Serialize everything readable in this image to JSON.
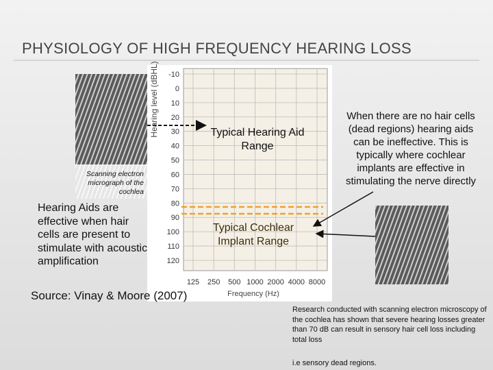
{
  "title": "PHYSIOLOGY OF HIGH FREQUENCY HEARING LOSS",
  "left_image": {
    "caption": "Scanning electron micrograph of the cochlea"
  },
  "left_text": "Hearing Aids are effective when hair cells are present to stimulate with acoustic amplification",
  "source": "Source: Vinay & Moore (2007)",
  "audiogram": {
    "y_label": "Hearing level (dBHL)",
    "x_label": "Frequency (Hz)",
    "yticks": [
      -10,
      0,
      10,
      20,
      30,
      40,
      50,
      60,
      70,
      80,
      90,
      100,
      110,
      120
    ],
    "xticks": [
      125,
      250,
      500,
      1000,
      2000,
      4000,
      8000
    ],
    "hearing_aid_label": "Typical Hearing Aid Range",
    "implant_label": "Typical Cochlear Implant Range"
  },
  "right_text": "When there are no hair cells (dead regions) hearing aids can be ineffective. This is typically where cochlear implants are effective in stimulating the nerve directly",
  "research_text": "Research conducted with scanning electron microscopy of the cochlea has shown that severe hearing losses greater than 70 dB can result in sensory hair cell loss including total loss",
  "note": "i.e sensory dead regions."
}
